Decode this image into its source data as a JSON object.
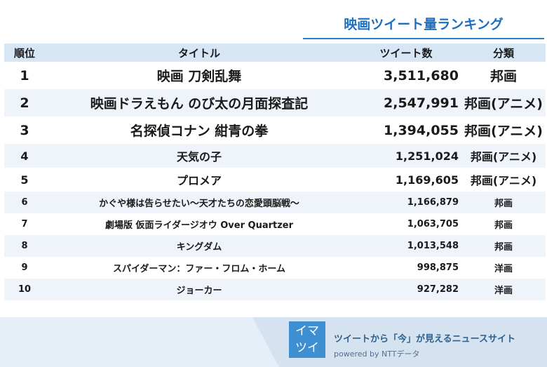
{
  "title": "映画ツイート量ランキング",
  "headers": {
    "rank": "順位",
    "title": "タイトル",
    "count": "ツイート数",
    "category": "分類"
  },
  "rows": [
    {
      "rank": "1",
      "title": "映画 刀剣乱舞",
      "count": "3,511,680",
      "category": "邦画"
    },
    {
      "rank": "2",
      "title": "映画ドラえもん のび太の月面探査記",
      "count": "2,547,991",
      "category": "邦画(アニメ)"
    },
    {
      "rank": "3",
      "title": "名探偵コナン 紺青の拳",
      "count": "1,394,055",
      "category": "邦画(アニメ)"
    },
    {
      "rank": "4",
      "title": "天気の子",
      "count": "1,251,024",
      "category": "邦画(アニメ)"
    },
    {
      "rank": "5",
      "title": "プロメア",
      "count": "1,169,605",
      "category": "邦画(アニメ)"
    },
    {
      "rank": "6",
      "title": "かぐや様は告らせたい〜天才たちの恋愛頭脳戦〜",
      "count": "1,166,879",
      "category": "邦画"
    },
    {
      "rank": "7",
      "title": "劇場版 仮面ライダージオウ Over Quartzer",
      "count": "1,063,705",
      "category": "邦画"
    },
    {
      "rank": "8",
      "title": "キングダム",
      "count": "1,013,548",
      "category": "邦画"
    },
    {
      "rank": "9",
      "title": "スパイダーマン：ファー・フロム・ホーム",
      "count": "998,875",
      "category": "洋画"
    },
    {
      "rank": "10",
      "title": "ジョーカー",
      "count": "927,282",
      "category": "洋画"
    }
  ],
  "footer": {
    "logo_line1": "イマ",
    "logo_line2": "ツイ",
    "tagline": "ツイートから「今」が見えるニュースサイト",
    "powered": "powered by NTTデータ"
  }
}
